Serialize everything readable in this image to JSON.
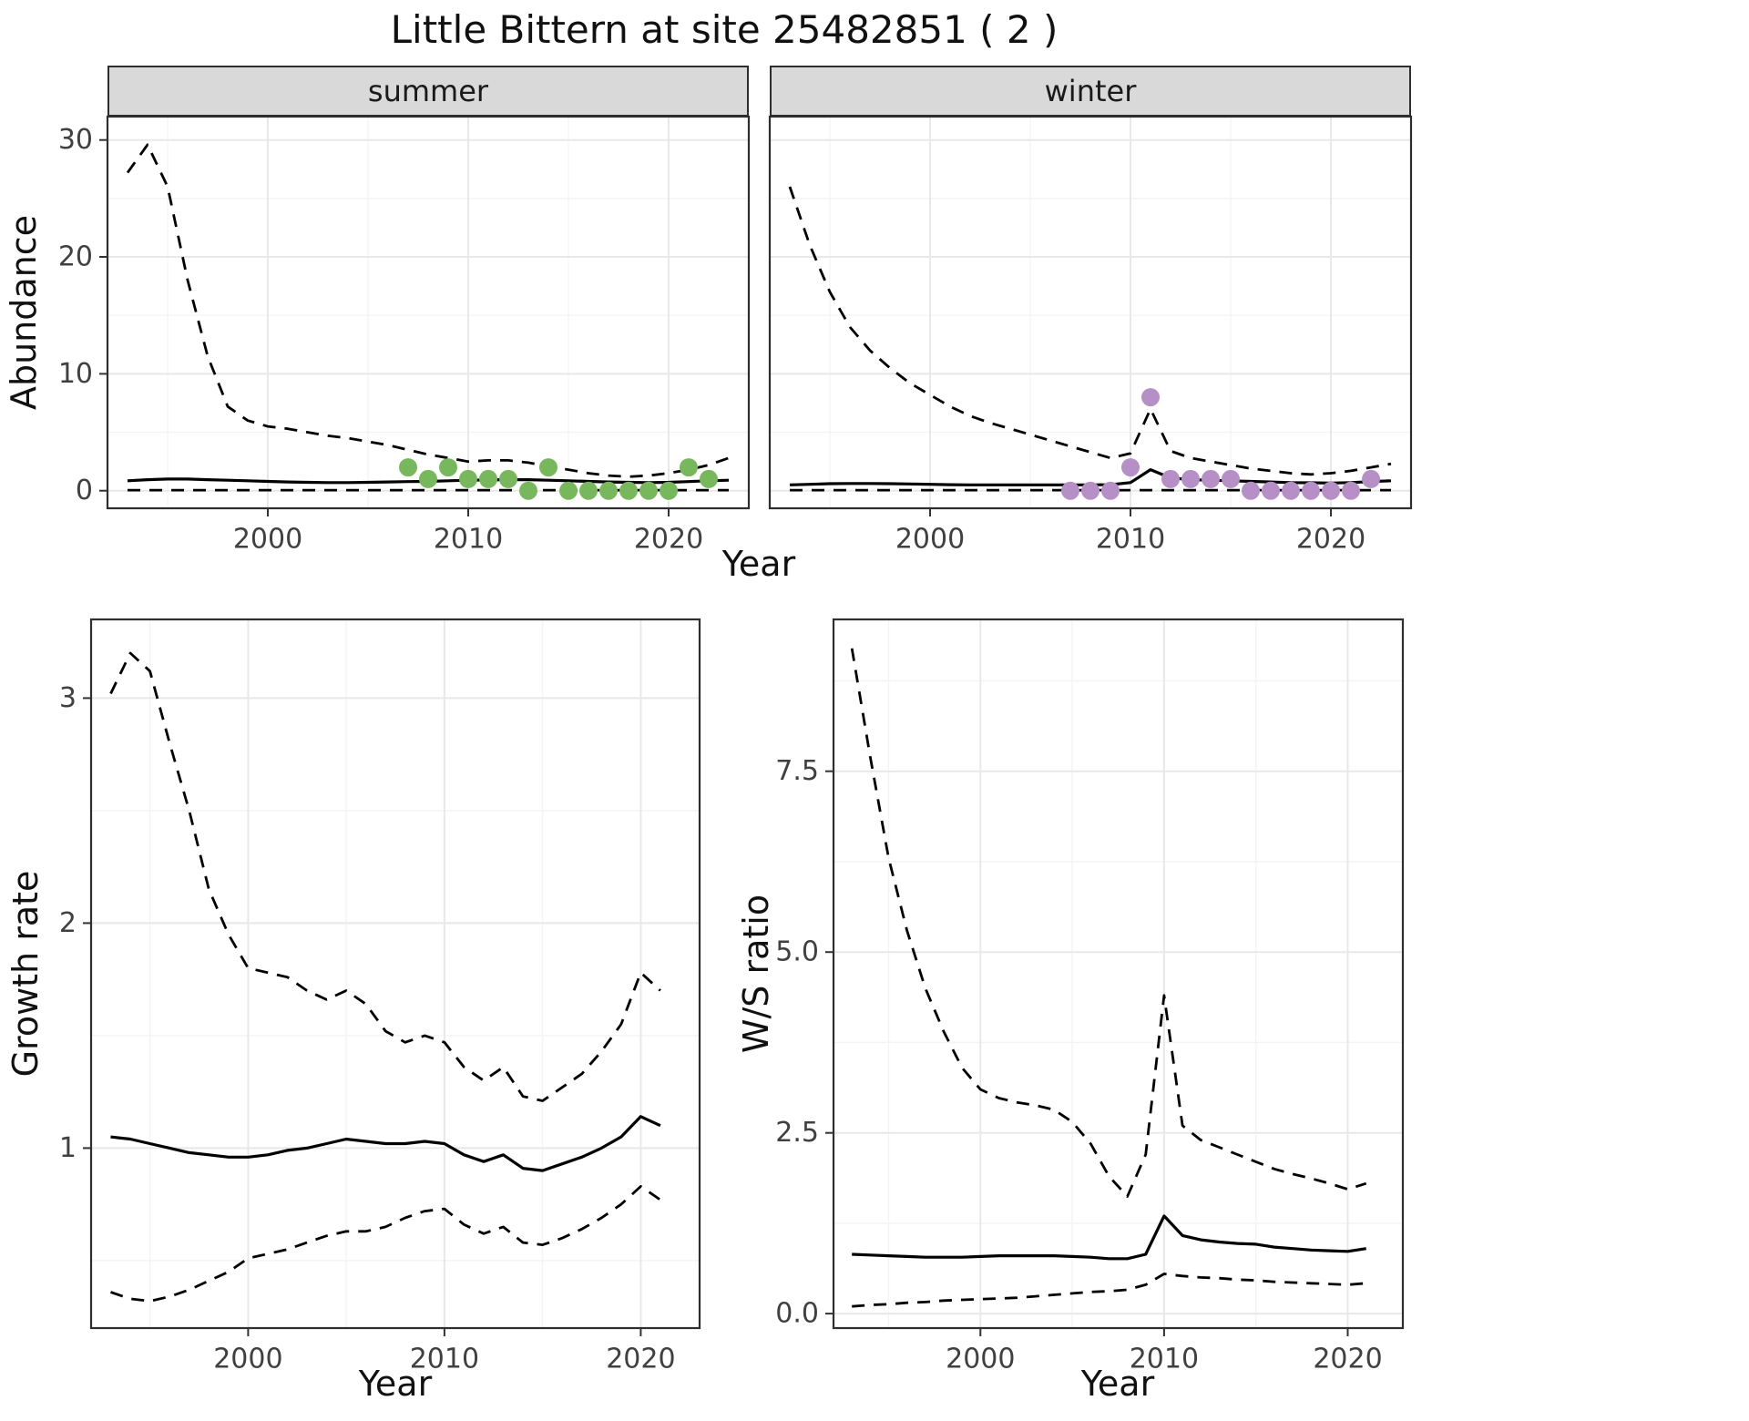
{
  "title": "Little Bittern at site 25482851 ( 2 )",
  "species": "Little Bittern",
  "site_id": "25482851",
  "site_index": "2",
  "labels": {
    "x_axis": "Year",
    "abundance": "Abundance",
    "growth_rate": "Growth rate",
    "ws_ratio": "W/S ratio"
  },
  "facets": {
    "summer": "summer",
    "winter": "winter"
  },
  "colors": {
    "summer_points": "#77b85c",
    "winter_points": "#b58fc6",
    "line": "#000000",
    "strip_bg": "#d9d9d9",
    "grid_major": "#e8e8e8",
    "grid_minor": "#f4f4f4",
    "panel_border": "#2e2e2e",
    "tick_text": "#404040"
  },
  "chart_data": [
    {
      "id": "abundance-summer",
      "type": "line",
      "facet_label": "summer",
      "xlabel": "Year",
      "ylabel": "Abundance",
      "xlim": [
        1992,
        2024
      ],
      "ylim": [
        -1.5,
        32
      ],
      "xticks": [
        2000,
        2010,
        2020
      ],
      "xtick_labels": [
        "2000",
        "2010",
        "2020"
      ],
      "yticks": [
        0,
        10,
        20,
        30
      ],
      "ytick_labels": [
        "0",
        "10",
        "20",
        "30"
      ],
      "x": [
        1993,
        1994,
        1995,
        1996,
        1997,
        1998,
        1999,
        2000,
        2001,
        2002,
        2003,
        2004,
        2005,
        2006,
        2007,
        2008,
        2009,
        2010,
        2011,
        2012,
        2013,
        2014,
        2015,
        2016,
        2017,
        2018,
        2019,
        2020,
        2021,
        2022,
        2023
      ],
      "series": [
        {
          "name": "upper_95ci",
          "style": "dashed",
          "values": [
            27.2,
            29.6,
            26,
            18,
            11.5,
            7.2,
            6,
            5.5,
            5.3,
            5,
            4.7,
            4.5,
            4.2,
            3.9,
            3.5,
            3.1,
            2.8,
            2.5,
            2.6,
            2.6,
            2.4,
            2.1,
            1.8,
            1.5,
            1.3,
            1.2,
            1.3,
            1.5,
            1.8,
            2.2,
            2.8
          ]
        },
        {
          "name": "modelled_mean",
          "style": "solid",
          "values": [
            0.85,
            0.95,
            1,
            1,
            0.95,
            0.9,
            0.85,
            0.8,
            0.75,
            0.72,
            0.7,
            0.7,
            0.72,
            0.75,
            0.78,
            0.8,
            0.85,
            0.9,
            0.92,
            0.95,
            0.95,
            0.9,
            0.85,
            0.8,
            0.75,
            0.72,
            0.7,
            0.72,
            0.78,
            0.85,
            0.9
          ]
        },
        {
          "name": "lower_95ci",
          "style": "dashed",
          "values": [
            0.05,
            0.05,
            0.05,
            0.05,
            0.05,
            0.05,
            0.05,
            0.05,
            0.05,
            0.05,
            0.05,
            0.05,
            0.05,
            0.05,
            0.05,
            0.05,
            0.05,
            0.05,
            0.05,
            0.05,
            0.05,
            0.05,
            0.05,
            0.05,
            0.05,
            0.05,
            0.05,
            0.05,
            0.05,
            0.05,
            0.05
          ]
        }
      ],
      "points": {
        "name": "observed-counts-summer",
        "color": "#77b85c",
        "x": [
          2007,
          2008,
          2009,
          2010,
          2011,
          2012,
          2013,
          2014,
          2015,
          2016,
          2017,
          2018,
          2019,
          2020,
          2021,
          2022
        ],
        "y": [
          2,
          1,
          2,
          1,
          1,
          1,
          0,
          2,
          0,
          0,
          0,
          0,
          0,
          0,
          2,
          1
        ]
      }
    },
    {
      "id": "abundance-winter",
      "type": "line",
      "facet_label": "winter",
      "xlabel": "Year",
      "ylabel": "Abundance",
      "xlim": [
        1992,
        2024
      ],
      "ylim": [
        -1.5,
        32
      ],
      "xticks": [
        2000,
        2010,
        2020
      ],
      "xtick_labels": [
        "2000",
        "2010",
        "2020"
      ],
      "yticks": [
        0,
        10,
        20,
        30
      ],
      "ytick_labels": [
        "0",
        "10",
        "20",
        "30"
      ],
      "x": [
        1993,
        1994,
        1995,
        1996,
        1997,
        1998,
        1999,
        2000,
        2001,
        2002,
        2003,
        2004,
        2005,
        2006,
        2007,
        2008,
        2009,
        2010,
        2011,
        2012,
        2013,
        2014,
        2015,
        2016,
        2017,
        2018,
        2019,
        2020,
        2021,
        2022,
        2023
      ],
      "series": [
        {
          "name": "upper_95ci",
          "style": "dashed",
          "values": [
            26,
            21,
            17,
            14,
            12,
            10.5,
            9.2,
            8.2,
            7.2,
            6.4,
            5.8,
            5.3,
            4.8,
            4.3,
            3.8,
            3.3,
            2.8,
            3.2,
            7,
            3.4,
            2.8,
            2.5,
            2.2,
            1.9,
            1.7,
            1.5,
            1.4,
            1.5,
            1.7,
            2,
            2.3
          ]
        },
        {
          "name": "modelled_mean",
          "style": "solid",
          "values": [
            0.5,
            0.55,
            0.6,
            0.62,
            0.62,
            0.6,
            0.58,
            0.55,
            0.52,
            0.5,
            0.5,
            0.5,
            0.5,
            0.5,
            0.5,
            0.5,
            0.52,
            0.7,
            1.8,
            1.1,
            0.95,
            0.9,
            0.85,
            0.8,
            0.75,
            0.7,
            0.68,
            0.66,
            0.7,
            0.78,
            0.85
          ]
        },
        {
          "name": "lower_95ci",
          "style": "dashed",
          "values": [
            0.05,
            0.05,
            0.05,
            0.05,
            0.05,
            0.05,
            0.05,
            0.05,
            0.05,
            0.05,
            0.05,
            0.05,
            0.05,
            0.05,
            0.05,
            0.05,
            0.05,
            0.05,
            0.05,
            0.05,
            0.05,
            0.05,
            0.05,
            0.05,
            0.05,
            0.05,
            0.05,
            0.05,
            0.05,
            0.05,
            0.05
          ]
        }
      ],
      "points": {
        "name": "observed-counts-winter",
        "color": "#b58fc6",
        "x": [
          2007,
          2008,
          2009,
          2010,
          2011,
          2012,
          2013,
          2014,
          2015,
          2016,
          2017,
          2018,
          2019,
          2020,
          2021,
          2022
        ],
        "y": [
          0,
          0,
          0,
          2,
          8,
          1,
          1,
          1,
          1,
          0,
          0,
          0,
          0,
          0,
          0,
          1
        ]
      }
    },
    {
      "id": "growth-rate",
      "type": "line",
      "facet_label": "",
      "xlabel": "Year",
      "ylabel": "Growth rate",
      "xlim": [
        1992,
        2023
      ],
      "ylim": [
        0.2,
        3.35
      ],
      "xticks": [
        2000,
        2010,
        2020
      ],
      "xtick_labels": [
        "2000",
        "2010",
        "2020"
      ],
      "yticks": [
        1,
        2,
        3
      ],
      "ytick_labels": [
        "1",
        "2",
        "3"
      ],
      "x": [
        1993,
        1994,
        1995,
        1996,
        1997,
        1998,
        1999,
        2000,
        2001,
        2002,
        2003,
        2004,
        2005,
        2006,
        2007,
        2008,
        2009,
        2010,
        2011,
        2012,
        2013,
        2014,
        2015,
        2016,
        2017,
        2018,
        2019,
        2020,
        2021
      ],
      "series": [
        {
          "name": "upper_95ci",
          "style": "dashed",
          "values": [
            3.02,
            3.2,
            3.12,
            2.8,
            2.5,
            2.15,
            1.95,
            1.8,
            1.78,
            1.76,
            1.7,
            1.66,
            1.7,
            1.64,
            1.52,
            1.47,
            1.5,
            1.47,
            1.36,
            1.3,
            1.36,
            1.23,
            1.21,
            1.27,
            1.33,
            1.43,
            1.55,
            1.78,
            1.7
          ]
        },
        {
          "name": "modelled_mean",
          "style": "solid",
          "values": [
            1.05,
            1.04,
            1.02,
            1,
            0.98,
            0.97,
            0.96,
            0.96,
            0.97,
            0.99,
            1,
            1.02,
            1.04,
            1.03,
            1.02,
            1.02,
            1.03,
            1.02,
            0.97,
            0.94,
            0.97,
            0.91,
            0.9,
            0.93,
            0.96,
            1,
            1.05,
            1.14,
            1.1
          ]
        },
        {
          "name": "lower_95ci",
          "style": "dashed",
          "values": [
            0.36,
            0.33,
            0.32,
            0.34,
            0.37,
            0.41,
            0.45,
            0.51,
            0.53,
            0.55,
            0.58,
            0.61,
            0.63,
            0.63,
            0.65,
            0.69,
            0.72,
            0.73,
            0.66,
            0.62,
            0.65,
            0.58,
            0.57,
            0.6,
            0.64,
            0.69,
            0.75,
            0.83,
            0.77
          ]
        }
      ]
    },
    {
      "id": "ws-ratio",
      "type": "line",
      "facet_label": "",
      "xlabel": "Year",
      "ylabel": "W/S ratio",
      "xlim": [
        1992,
        2023
      ],
      "ylim": [
        -0.2,
        9.6
      ],
      "xticks": [
        2000,
        2010,
        2020
      ],
      "xtick_labels": [
        "2000",
        "2010",
        "2020"
      ],
      "yticks": [
        0,
        2.5,
        5,
        7.5
      ],
      "ytick_labels": [
        "0.0",
        "2.5",
        "5.0",
        "7.5"
      ],
      "x": [
        1993,
        1994,
        1995,
        1996,
        1997,
        1998,
        1999,
        2000,
        2001,
        2002,
        2003,
        2004,
        2005,
        2006,
        2007,
        2008,
        2009,
        2010,
        2011,
        2012,
        2013,
        2014,
        2015,
        2016,
        2017,
        2018,
        2019,
        2020,
        2021
      ],
      "series": [
        {
          "name": "upper_95ci",
          "style": "dashed",
          "values": [
            9.2,
            7.7,
            6.3,
            5.3,
            4.5,
            3.9,
            3.4,
            3.1,
            2.98,
            2.92,
            2.88,
            2.82,
            2.65,
            2.35,
            1.9,
            1.62,
            2.2,
            4.4,
            2.6,
            2.4,
            2.3,
            2.2,
            2.1,
            2,
            1.93,
            1.87,
            1.8,
            1.72,
            1.8
          ]
        },
        {
          "name": "modelled_mean",
          "style": "solid",
          "values": [
            0.82,
            0.81,
            0.8,
            0.79,
            0.78,
            0.78,
            0.78,
            0.79,
            0.8,
            0.8,
            0.8,
            0.8,
            0.79,
            0.78,
            0.76,
            0.76,
            0.82,
            1.35,
            1.08,
            1.02,
            0.99,
            0.97,
            0.96,
            0.92,
            0.9,
            0.88,
            0.87,
            0.86,
            0.9
          ]
        },
        {
          "name": "lower_95ci",
          "style": "dashed",
          "values": [
            0.1,
            0.12,
            0.13,
            0.15,
            0.16,
            0.18,
            0.19,
            0.2,
            0.21,
            0.22,
            0.24,
            0.26,
            0.28,
            0.3,
            0.31,
            0.33,
            0.4,
            0.55,
            0.52,
            0.5,
            0.49,
            0.47,
            0.46,
            0.44,
            0.43,
            0.42,
            0.41,
            0.4,
            0.42
          ]
        }
      ]
    }
  ]
}
